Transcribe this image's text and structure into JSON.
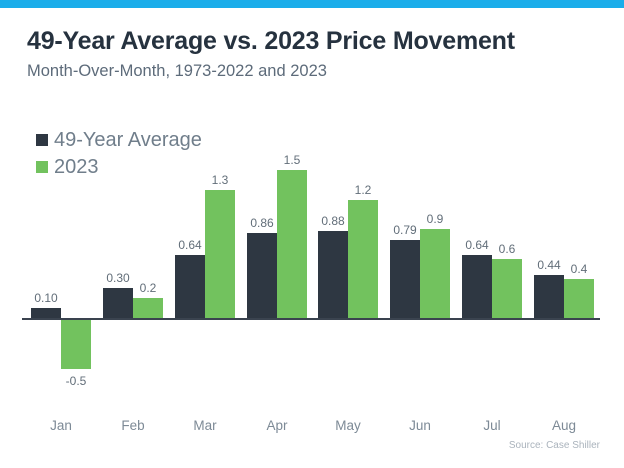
{
  "header": {
    "title": "49-Year Average vs. 2023 Price Movement",
    "subtitle": "Month-Over-Month, 1973-2022 and 2023"
  },
  "legend": [
    {
      "label": "49-Year Average",
      "color": "#2e3742"
    },
    {
      "label": "2023",
      "color": "#72c25e"
    }
  ],
  "chart_data": {
    "type": "bar",
    "title": "49-Year Average vs. 2023 Price Movement",
    "subtitle": "Month-Over-Month, 1973-2022 and 2023",
    "categories": [
      "Jan",
      "Feb",
      "Mar",
      "Apr",
      "May",
      "Jun",
      "Jul",
      "Aug"
    ],
    "series": [
      {
        "name": "49-Year Average",
        "color": "#2e3742",
        "values": [
          0.1,
          0.3,
          0.64,
          0.86,
          0.88,
          0.79,
          0.64,
          0.44
        ],
        "labels": [
          "0.10",
          "0.30",
          "0.64",
          "0.86",
          "0.88",
          "0.79",
          "0.64",
          "0.44"
        ]
      },
      {
        "name": "2023",
        "color": "#72c25e",
        "values": [
          -0.5,
          0.2,
          1.3,
          1.5,
          1.2,
          0.9,
          0.6,
          0.4
        ],
        "labels": [
          "-0.5",
          "0.2",
          "1.3",
          "1.5",
          "1.2",
          "0.9",
          "0.6",
          "0.4"
        ]
      }
    ],
    "xlabel": "",
    "ylabel": "",
    "ylim": [
      -0.5,
      1.5
    ],
    "baseline": 0,
    "grid": false,
    "legend_position": "top-left",
    "value_labels_shown": true
  },
  "source": "Source: Case Shiller",
  "colors": {
    "top_accent_bar": "#1badea",
    "axis_line": "#3a434f",
    "background": "#ffffff"
  }
}
